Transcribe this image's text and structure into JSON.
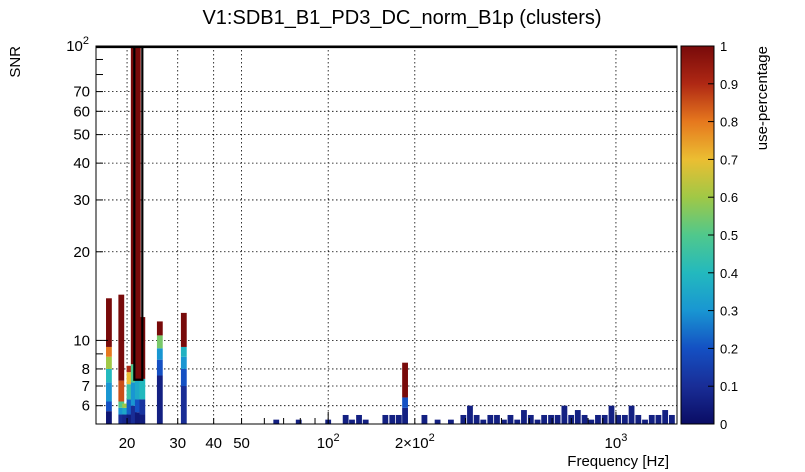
{
  "chart_data": {
    "type": "heatmap",
    "title": "V1:SDB1_B1_PD3_DC_norm_B1p (clusters)",
    "xlabel": "Frequency [Hz]",
    "ylabel": "SNR",
    "zlabel": "use-percentage",
    "x_scale": "log",
    "y_scale": "log",
    "xlim": [
      15.6,
      1630
    ],
    "ylim": [
      5.2,
      100
    ],
    "zlim": [
      0,
      1
    ],
    "grid": true,
    "x_ticks": [
      {
        "value": 20,
        "label": "20"
      },
      {
        "value": 30,
        "label": "30"
      },
      {
        "value": 40,
        "label": "40"
      },
      {
        "value": 50,
        "label": "50"
      },
      {
        "value": 100,
        "label": "10",
        "sup": "2"
      },
      {
        "value": 200,
        "label": "2×10",
        "sup": "2"
      },
      {
        "value": 1000,
        "label": "10",
        "sup": "3"
      }
    ],
    "y_ticks": [
      {
        "value": 6,
        "label": "6"
      },
      {
        "value": 7,
        "label": "7"
      },
      {
        "value": 8,
        "label": "8"
      },
      {
        "value": 10,
        "label": "10"
      },
      {
        "value": 20,
        "label": "20"
      },
      {
        "value": 30,
        "label": "30"
      },
      {
        "value": 40,
        "label": "40"
      },
      {
        "value": 50,
        "label": "50"
      },
      {
        "value": 60,
        "label": "60"
      },
      {
        "value": 70,
        "label": "70"
      },
      {
        "value": 100,
        "label": "10",
        "sup": "2"
      }
    ],
    "z_ticks": [
      {
        "value": 0,
        "label": "0"
      },
      {
        "value": 0.1,
        "label": "0.1"
      },
      {
        "value": 0.2,
        "label": "0.2"
      },
      {
        "value": 0.3,
        "label": "0.3"
      },
      {
        "value": 0.4,
        "label": "0.4"
      },
      {
        "value": 0.5,
        "label": "0.5"
      },
      {
        "value": 0.6,
        "label": "0.6"
      },
      {
        "value": 0.7,
        "label": "0.7"
      },
      {
        "value": 0.8,
        "label": "0.8"
      },
      {
        "value": 0.9,
        "label": "0.9"
      },
      {
        "value": 1,
        "label": "1"
      }
    ],
    "columns": [
      {
        "f": 17.3,
        "segments": [
          [
            5.2,
            5.75,
            0.03
          ],
          [
            5.75,
            6.2,
            0.2
          ],
          [
            6.2,
            7.2,
            0.3
          ],
          [
            7.2,
            8.0,
            0.4
          ],
          [
            8.0,
            8.8,
            0.6
          ],
          [
            8.8,
            9.5,
            0.8
          ],
          [
            9.5,
            13.9,
            1.0
          ]
        ]
      },
      {
        "f": 19.1,
        "segments": [
          [
            5.2,
            5.6,
            0.1
          ],
          [
            5.6,
            5.9,
            0.3
          ],
          [
            5.9,
            6.2,
            0.5
          ],
          [
            6.2,
            7.3,
            0.85
          ],
          [
            7.3,
            14.3,
            1.0
          ]
        ]
      },
      {
        "f": 19.7,
        "segments": [
          [
            5.2,
            5.6,
            0.08
          ],
          [
            5.6,
            5.9,
            0.35
          ],
          [
            5.9,
            6.1,
            0.6
          ]
        ]
      },
      {
        "f": 20.4,
        "segments": [
          [
            5.2,
            5.6,
            0.05
          ],
          [
            5.6,
            6.3,
            0.22
          ],
          [
            6.3,
            7.1,
            0.45
          ],
          [
            7.1,
            7.8,
            0.7
          ],
          [
            7.8,
            8.2,
            0.9
          ]
        ]
      },
      {
        "f": 21.1,
        "segments": [
          [
            5.2,
            6.0,
            0.1
          ],
          [
            6.0,
            7.2,
            0.3
          ],
          [
            7.2,
            8.3,
            0.5
          ],
          [
            8.3,
            100,
            1.0
          ]
        ]
      },
      {
        "f": 21.8,
        "segments": [
          [
            5.2,
            5.7,
            0.04
          ],
          [
            5.7,
            6.3,
            0.2
          ],
          [
            6.3,
            7.3,
            0.35
          ],
          [
            7.3,
            100,
            1.0
          ]
        ]
      },
      {
        "f": 22.6,
        "segments": [
          [
            5.2,
            5.6,
            0.05
          ],
          [
            5.6,
            6.3,
            0.12
          ],
          [
            6.3,
            7.4,
            0.4
          ],
          [
            7.4,
            12.0,
            1.0
          ]
        ]
      },
      {
        "f": 26.0,
        "segments": [
          [
            5.2,
            7.6,
            0.06
          ],
          [
            7.6,
            8.6,
            0.2
          ],
          [
            8.6,
            9.4,
            0.3
          ],
          [
            9.4,
            10.4,
            0.55
          ],
          [
            10.4,
            11.6,
            1.0
          ]
        ]
      },
      {
        "f": 31.5,
        "segments": [
          [
            5.2,
            7.0,
            0.1
          ],
          [
            7.0,
            8.0,
            0.2
          ],
          [
            8.0,
            8.8,
            0.3
          ],
          [
            8.8,
            9.5,
            0.38
          ],
          [
            9.5,
            12.4,
            1.0
          ]
        ]
      },
      {
        "f": 66,
        "segments": [
          [
            5.2,
            5.38,
            0.06
          ]
        ]
      },
      {
        "f": 79,
        "segments": [
          [
            5.2,
            5.38,
            0.06
          ]
        ]
      },
      {
        "f": 100,
        "segments": [
          [
            5.2,
            5.38,
            0.06
          ]
        ]
      },
      {
        "f": 115,
        "segments": [
          [
            5.2,
            5.58,
            0.06
          ]
        ]
      },
      {
        "f": 121,
        "segments": [
          [
            5.2,
            5.38,
            0.06
          ]
        ]
      },
      {
        "f": 128,
        "segments": [
          [
            5.2,
            5.58,
            0.06
          ]
        ]
      },
      {
        "f": 135,
        "segments": [
          [
            5.2,
            5.38,
            0.06
          ]
        ]
      },
      {
        "f": 158,
        "segments": [
          [
            5.2,
            5.58,
            0.06
          ]
        ]
      },
      {
        "f": 167,
        "segments": [
          [
            5.2,
            5.58,
            0.06
          ]
        ]
      },
      {
        "f": 176,
        "segments": [
          [
            5.2,
            5.58,
            0.06
          ]
        ]
      },
      {
        "f": 185,
        "segments": [
          [
            5.2,
            5.9,
            0.06
          ],
          [
            5.9,
            6.4,
            0.2
          ],
          [
            6.4,
            8.4,
            1.0
          ]
        ]
      },
      {
        "f": 216,
        "segments": [
          [
            5.2,
            5.58,
            0.06
          ]
        ]
      },
      {
        "f": 240,
        "segments": [
          [
            5.2,
            5.38,
            0.06
          ]
        ]
      },
      {
        "f": 267,
        "segments": [
          [
            5.2,
            5.38,
            0.06
          ]
        ]
      },
      {
        "f": 295,
        "segments": [
          [
            5.2,
            5.58,
            0.06
          ]
        ]
      },
      {
        "f": 311,
        "segments": [
          [
            5.2,
            6.0,
            0.06
          ]
        ]
      },
      {
        "f": 328,
        "segments": [
          [
            5.2,
            5.58,
            0.06
          ]
        ]
      },
      {
        "f": 346,
        "segments": [
          [
            5.2,
            5.38,
            0.06
          ]
        ]
      },
      {
        "f": 366,
        "segments": [
          [
            5.2,
            5.58,
            0.06
          ]
        ]
      },
      {
        "f": 386,
        "segments": [
          [
            5.2,
            5.58,
            0.06
          ]
        ]
      },
      {
        "f": 408,
        "segments": [
          [
            5.2,
            5.38,
            0.06
          ]
        ]
      },
      {
        "f": 430,
        "segments": [
          [
            5.2,
            5.58,
            0.06
          ]
        ]
      },
      {
        "f": 454,
        "segments": [
          [
            5.2,
            5.38,
            0.06
          ]
        ]
      },
      {
        "f": 479,
        "segments": [
          [
            5.2,
            5.8,
            0.06
          ]
        ]
      },
      {
        "f": 506,
        "segments": [
          [
            5.2,
            5.58,
            0.06
          ]
        ]
      },
      {
        "f": 534,
        "segments": [
          [
            5.2,
            5.38,
            0.06
          ]
        ]
      },
      {
        "f": 563,
        "segments": [
          [
            5.2,
            5.58,
            0.06
          ]
        ]
      },
      {
        "f": 595,
        "segments": [
          [
            5.2,
            5.58,
            0.06
          ]
        ]
      },
      {
        "f": 627,
        "segments": [
          [
            5.2,
            5.58,
            0.06
          ]
        ]
      },
      {
        "f": 662,
        "segments": [
          [
            5.2,
            6.0,
            0.06
          ]
        ]
      },
      {
        "f": 699,
        "segments": [
          [
            5.2,
            5.58,
            0.06
          ]
        ]
      },
      {
        "f": 737,
        "segments": [
          [
            5.2,
            5.8,
            0.06
          ]
        ]
      },
      {
        "f": 778,
        "segments": [
          [
            5.2,
            5.58,
            0.06
          ]
        ]
      },
      {
        "f": 821,
        "segments": [
          [
            5.2,
            5.38,
            0.06
          ]
        ]
      },
      {
        "f": 866,
        "segments": [
          [
            5.2,
            5.58,
            0.06
          ]
        ]
      },
      {
        "f": 914,
        "segments": [
          [
            5.2,
            5.58,
            0.06
          ]
        ]
      },
      {
        "f": 965,
        "segments": [
          [
            5.2,
            6.0,
            0.06
          ]
        ]
      },
      {
        "f": 1018,
        "segments": [
          [
            5.2,
            5.58,
            0.06
          ]
        ]
      },
      {
        "f": 1074,
        "segments": [
          [
            5.2,
            5.58,
            0.06
          ]
        ]
      },
      {
        "f": 1133,
        "segments": [
          [
            5.2,
            6.0,
            0.06
          ]
        ]
      },
      {
        "f": 1196,
        "segments": [
          [
            5.2,
            5.58,
            0.06
          ]
        ]
      },
      {
        "f": 1262,
        "segments": [
          [
            5.2,
            5.38,
            0.06
          ]
        ]
      },
      {
        "f": 1332,
        "segments": [
          [
            5.2,
            5.58,
            0.06
          ]
        ]
      },
      {
        "f": 1405,
        "segments": [
          [
            5.2,
            5.58,
            0.06
          ]
        ]
      },
      {
        "f": 1483,
        "segments": [
          [
            5.2,
            5.8,
            0.06
          ]
        ]
      },
      {
        "f": 1565,
        "segments": [
          [
            5.2,
            5.58,
            0.06
          ]
        ]
      }
    ],
    "highlight_box": {
      "f_min": 21.2,
      "f_max": 22.6,
      "snr_min": 7.35,
      "snr_max": 100
    }
  }
}
